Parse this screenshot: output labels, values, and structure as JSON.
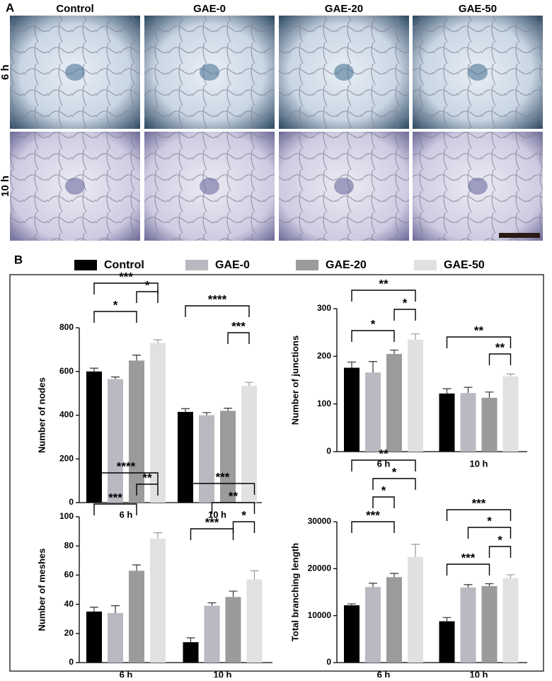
{
  "panel_a": {
    "label": "A",
    "columns": [
      "Control",
      "GAE-0",
      "GAE-20",
      "GAE-50"
    ],
    "rows": [
      "6 h",
      "10 h"
    ]
  },
  "panel_b": {
    "label": "B"
  },
  "legend": [
    {
      "name": "Control",
      "color": "#000000"
    },
    {
      "name": "GAE-0",
      "color": "#b9b9c1"
    },
    {
      "name": "GAE-20",
      "color": "#9b9b9b"
    },
    {
      "name": "GAE-50",
      "color": "#e1e1e1"
    }
  ],
  "chart_data": [
    {
      "type": "bar",
      "y_label": "Number of nodes",
      "categories": [
        "6 h",
        "10 h"
      ],
      "ylim": [
        0,
        800
      ],
      "yticks": [
        0,
        200,
        400,
        600,
        800
      ],
      "series": [
        {
          "color": "#000000",
          "values": [
            600,
            415
          ],
          "errors": [
            15,
            15
          ]
        },
        {
          "color": "#b9b9c1",
          "values": [
            565,
            400
          ],
          "errors": [
            10,
            12
          ]
        },
        {
          "color": "#9b9b9b",
          "values": [
            650,
            420
          ],
          "errors": [
            25,
            12
          ]
        },
        {
          "color": "#e1e1e1",
          "values": [
            730,
            535
          ],
          "errors": [
            15,
            15
          ]
        }
      ],
      "annotations": [
        "***",
        "*",
        "*",
        "****",
        "***"
      ]
    },
    {
      "type": "bar",
      "y_label": "Number of junctions",
      "categories": [
        "6 h",
        "10 h"
      ],
      "ylim": [
        0,
        300
      ],
      "yticks": [
        0,
        100,
        200,
        300
      ],
      "series": [
        {
          "color": "#000000",
          "values": [
            176,
            122
          ],
          "errors": [
            12,
            10
          ]
        },
        {
          "color": "#b9b9c1",
          "values": [
            166,
            123
          ],
          "errors": [
            23,
            12
          ]
        },
        {
          "color": "#9b9b9b",
          "values": [
            205,
            113
          ],
          "errors": [
            8,
            12
          ]
        },
        {
          "color": "#e1e1e1",
          "values": [
            235,
            158
          ],
          "errors": [
            12,
            5
          ]
        }
      ],
      "annotations": [
        "**",
        "*",
        "*",
        "**",
        "**"
      ]
    },
    {
      "type": "bar",
      "y_label": "Number of meshes",
      "categories": [
        "6 h",
        "10 h"
      ],
      "ylim": [
        0,
        100
      ],
      "yticks": [
        0,
        20,
        40,
        60,
        80,
        100
      ],
      "series": [
        {
          "color": "#000000",
          "values": [
            35,
            14
          ],
          "errors": [
            3,
            3
          ]
        },
        {
          "color": "#b9b9c1",
          "values": [
            34,
            39
          ],
          "errors": [
            5,
            2
          ]
        },
        {
          "color": "#9b9b9b",
          "values": [
            63,
            45
          ],
          "errors": [
            4,
            4
          ]
        },
        {
          "color": "#e1e1e1",
          "values": [
            85,
            57
          ],
          "errors": [
            4,
            6
          ]
        }
      ],
      "annotations": [
        "****",
        "**",
        "***",
        "***",
        "**",
        "*",
        "***"
      ]
    },
    {
      "type": "bar",
      "y_label": "Total branching length",
      "categories": [
        "6 h",
        "10 h"
      ],
      "ylim": [
        0,
        30000
      ],
      "yticks": [
        0,
        10000,
        20000,
        30000
      ],
      "series": [
        {
          "color": "#000000",
          "values": [
            12200,
            8800
          ],
          "errors": [
            300,
            800
          ]
        },
        {
          "color": "#b9b9c1",
          "values": [
            16100,
            16000
          ],
          "errors": [
            800,
            600
          ]
        },
        {
          "color": "#9b9b9b",
          "values": [
            18200,
            16300
          ],
          "errors": [
            800,
            500
          ]
        },
        {
          "color": "#e1e1e1",
          "values": [
            22500,
            18000
          ],
          "errors": [
            2700,
            700
          ]
        }
      ],
      "annotations": [
        "**",
        "*",
        "*",
        "***",
        "***",
        "*",
        "*",
        "***"
      ]
    }
  ]
}
